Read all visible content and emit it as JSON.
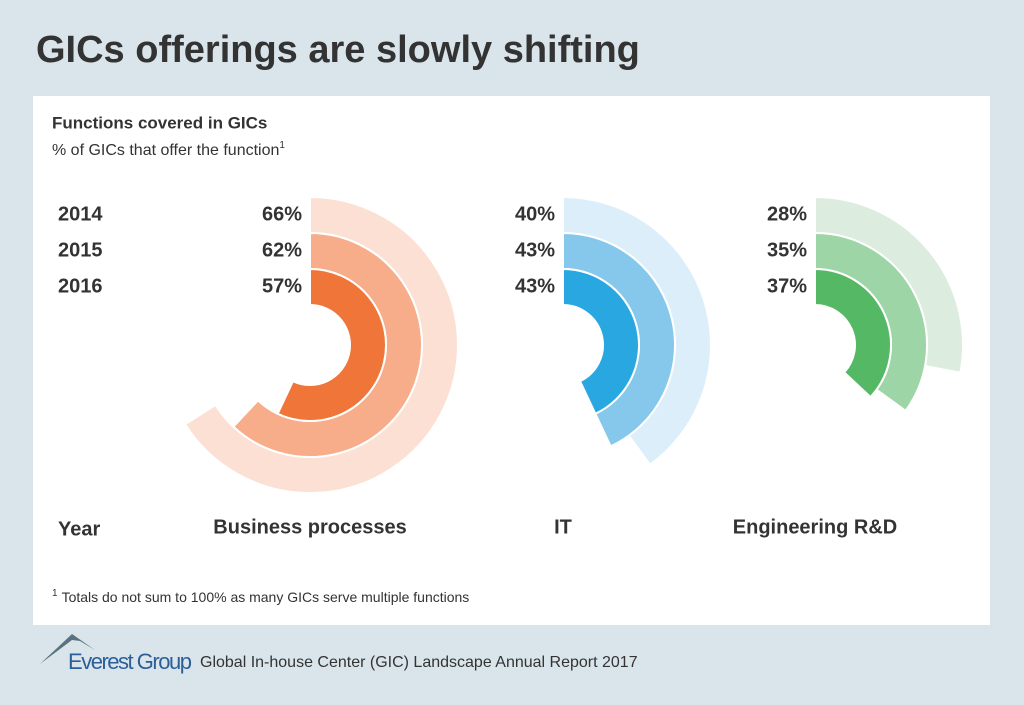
{
  "title": "GICs offerings are slowly shifting",
  "chart_data": {
    "type": "radial-bar",
    "title": "Functions covered in GICs",
    "subtitle": "% of GICs that offer the function",
    "subtitle_note": "1",
    "category_label": "Year",
    "categories": [
      "2014",
      "2015",
      "2016"
    ],
    "ylim": [
      0,
      100
    ],
    "series": [
      {
        "name": "Business processes",
        "colors": [
          "#fbe0d3",
          "#f7ad8a",
          "#f07538"
        ],
        "values": [
          66,
          62,
          57
        ],
        "value_labels": [
          "66%",
          "62%",
          "57%"
        ]
      },
      {
        "name": "IT",
        "colors": [
          "#dceef9",
          "#85c8ec",
          "#29a7e0"
        ],
        "values": [
          40,
          43,
          43
        ],
        "value_labels": [
          "40%",
          "43%",
          "43%"
        ]
      },
      {
        "name": "Engineering R&D",
        "colors": [
          "#dcecdf",
          "#9ed5a6",
          "#55b865"
        ],
        "values": [
          28,
          35,
          37
        ],
        "value_labels": [
          "28%",
          "35%",
          "37%"
        ]
      }
    ]
  },
  "footnote": {
    "marker": "1",
    "text": "Totals do not sum to 100% as many GICs serve multiple functions"
  },
  "footer": {
    "brand": "Everest Group",
    "text": "Global In-house Center (GIC) Landscape Annual Report 2017"
  }
}
